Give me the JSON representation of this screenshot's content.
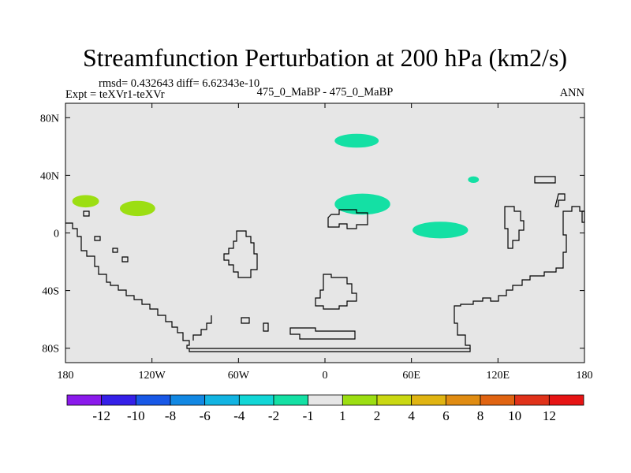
{
  "chart_data": {
    "type": "heatmap",
    "title": "Streamfunction Perturbation at 200 hPa (km2/s)",
    "stats_text": "rmsd= 0.432643 diff= 6.62343e-10",
    "left_label": "Expt = teXVr1-teXVr",
    "center_label": "475_0_MaBP - 475_0_MaBP",
    "right_label": "ANN",
    "x_ticks": [
      "180",
      "120W",
      "60W",
      "0",
      "60E",
      "120E",
      "180"
    ],
    "y_ticks": [
      "80N",
      "40N",
      "0",
      "40S",
      "80S"
    ],
    "xlim": [
      -180,
      180
    ],
    "ylim": [
      -90,
      90
    ],
    "colorbar": {
      "labels": [
        "-12",
        "-10",
        "-8",
        "-6",
        "-4",
        "-2",
        "-1",
        "1",
        "2",
        "4",
        "6",
        "8",
        "10",
        "12"
      ],
      "colors": [
        "#8a1aeb",
        "#3520e8",
        "#1858e6",
        "#1288e3",
        "#12b4e2",
        "#12d6d6",
        "#14e0a4",
        "#e6e6e6",
        "#9cde12",
        "#cad812",
        "#e0b412",
        "#e08c12",
        "#e06412",
        "#e0321a",
        "#e61414"
      ]
    },
    "anomalies": [
      {
        "lon": -166,
        "lat": 22,
        "rlon": 9,
        "rlat": 4,
        "level": "1 to 2",
        "color": "#9cde12"
      },
      {
        "lon": -130,
        "lat": 17,
        "rlon": 12,
        "rlat": 5,
        "level": "1 to 2",
        "color": "#9cde12"
      },
      {
        "lon": 22,
        "lat": 64,
        "rlon": 15,
        "rlat": 4.5,
        "level": "-2 to -1",
        "color": "#14e0a4"
      },
      {
        "lon": 26,
        "lat": 20,
        "rlon": 19,
        "rlat": 7,
        "level": "-2 to -1",
        "color": "#14e0a4"
      },
      {
        "lon": 103,
        "lat": 37,
        "rlon": 3.5,
        "rlat": 2,
        "level": "-2 to -1",
        "color": "#14e0a4"
      },
      {
        "lon": 80,
        "lat": 2,
        "rlon": 19,
        "rlat": 5.5,
        "level": "-2 to -1",
        "color": "#14e0a4"
      }
    ]
  }
}
